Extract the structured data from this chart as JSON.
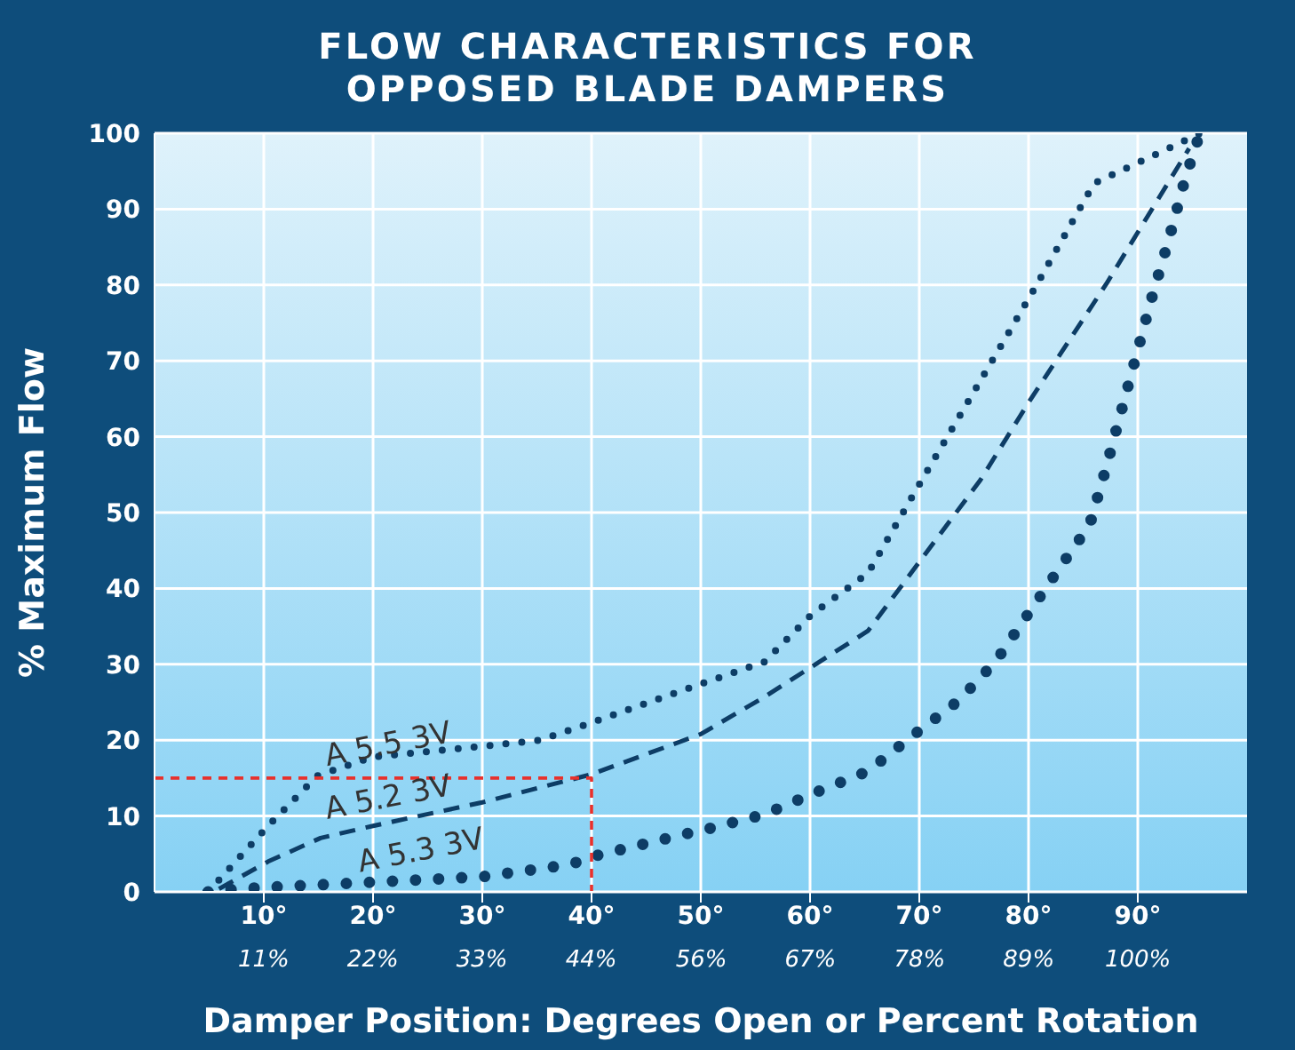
{
  "chart_data": {
    "type": "line",
    "title": "FLOW CHARACTERISTICS FOR OPPOSED BLADE DAMPERS",
    "xlabel": "Damper Position: Degrees Open or Percent Rotation",
    "ylabel": "% Maximum Flow",
    "xlim": [
      0,
      100
    ],
    "ylim": [
      0,
      100
    ],
    "xticks": [
      {
        "value": 10,
        "label": "10°"
      },
      {
        "value": 20,
        "label": "20°"
      },
      {
        "value": 30,
        "label": "30°"
      },
      {
        "value": 40,
        "label": "40°"
      },
      {
        "value": 50,
        "label": "50°"
      },
      {
        "value": 60,
        "label": "60°"
      },
      {
        "value": 70,
        "label": "70°"
      },
      {
        "value": 80,
        "label": "80°"
      },
      {
        "value": 90,
        "label": "90°"
      }
    ],
    "x2lim": [
      0,
      111.1
    ],
    "x2ticks": [
      {
        "value": 11.1,
        "label": "11%"
      },
      {
        "value": 22.2,
        "label": "22%"
      },
      {
        "value": 33.3,
        "label": "33%"
      },
      {
        "value": 44.4,
        "label": "44%"
      },
      {
        "value": 55.6,
        "label": "56%"
      },
      {
        "value": 66.7,
        "label": "67%"
      },
      {
        "value": 77.8,
        "label": "78%"
      },
      {
        "value": 88.9,
        "label": "89%"
      },
      {
        "value": 100,
        "label": "100%"
      }
    ],
    "yticks": [
      0,
      10,
      20,
      30,
      40,
      50,
      60,
      70,
      80,
      90,
      100
    ],
    "grid": true,
    "series": [
      {
        "name": "A 5.5 3V",
        "color": "#0d3d66",
        "line_style": "dotted",
        "x": [
          4.9,
          10.4,
          14.9,
          20,
          30,
          35.3,
          40,
          50,
          55.8,
          60.1,
          65.3,
          70.2,
          80.3,
          86,
          90.9,
          95.7
        ],
        "values": [
          0,
          8.7,
          15.3,
          17.8,
          19.2,
          20,
          22.3,
          27.4,
          30.3,
          36.5,
          42,
          54.2,
          78.9,
          93.4,
          96.7,
          100
        ]
      },
      {
        "name": "A 5.2 3V",
        "color": "#0d3d66",
        "line_style": "dashed",
        "x": [
          5.9,
          10.4,
          15.2,
          20,
          30,
          40,
          50,
          55.6,
          65.3,
          75.6,
          80,
          87.1,
          94.7
        ],
        "values": [
          0.4,
          4,
          7.1,
          8.7,
          11.8,
          15.5,
          20.8,
          25.5,
          34.4,
          54.3,
          64.5,
          80.1,
          98
        ]
      },
      {
        "name": "A 5.3 3V",
        "color": "#0d3d66",
        "line_style": "dotted",
        "x": [
          4.9,
          7.6,
          10.4,
          16,
          21.7,
          30,
          38,
          40.5,
          48.2,
          50.9,
          55.8,
          60.5,
          65.3,
          69.4,
          73.6,
          77,
          79.9,
          82.8,
          85.6,
          87.1,
          88.5,
          89.9,
          91.3,
          92.8,
          93.5,
          94.2,
          95,
          95.7
        ],
        "values": [
          0,
          0.4,
          0.6,
          1,
          1.4,
          2,
          3.6,
          4.8,
          7.5,
          8.4,
          10.2,
          13.1,
          15.9,
          20.6,
          25.2,
          30.4,
          36.5,
          42.6,
          48.4,
          55.9,
          63.4,
          70.9,
          78.4,
          85.8,
          89.5,
          93.3,
          97,
          100
        ]
      },
      {
        "color": "#e8312c",
        "line_style": "dashed",
        "x": [
          0,
          40,
          40
        ],
        "values": [
          15,
          15,
          0
        ]
      }
    ]
  }
}
